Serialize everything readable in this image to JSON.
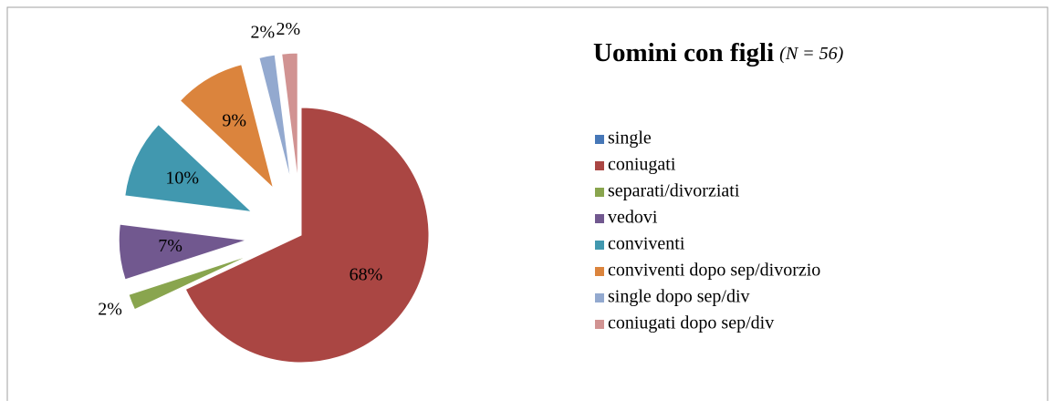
{
  "chart_data": {
    "type": "pie",
    "title": "Uomini con figli",
    "subtitle": "(N = 56)",
    "categories": [
      "single",
      "coniugati",
      "separati/divorziati",
      "vedovi",
      "conviventi",
      "conviventi dopo sep/divorzio",
      "single dopo sep/div",
      "coniugati dopo sep/div"
    ],
    "values": [
      0,
      68,
      2,
      7,
      10,
      9,
      2,
      2
    ],
    "value_labels": [
      null,
      "68%",
      "2%",
      "7%",
      "10%",
      "9%",
      "2%",
      "2%"
    ],
    "colors": [
      "#4677b7",
      "#aa4643",
      "#89a54e",
      "#71588f",
      "#4198af",
      "#db843d",
      "#93a9cf",
      "#d19392"
    ],
    "legend": "right"
  }
}
